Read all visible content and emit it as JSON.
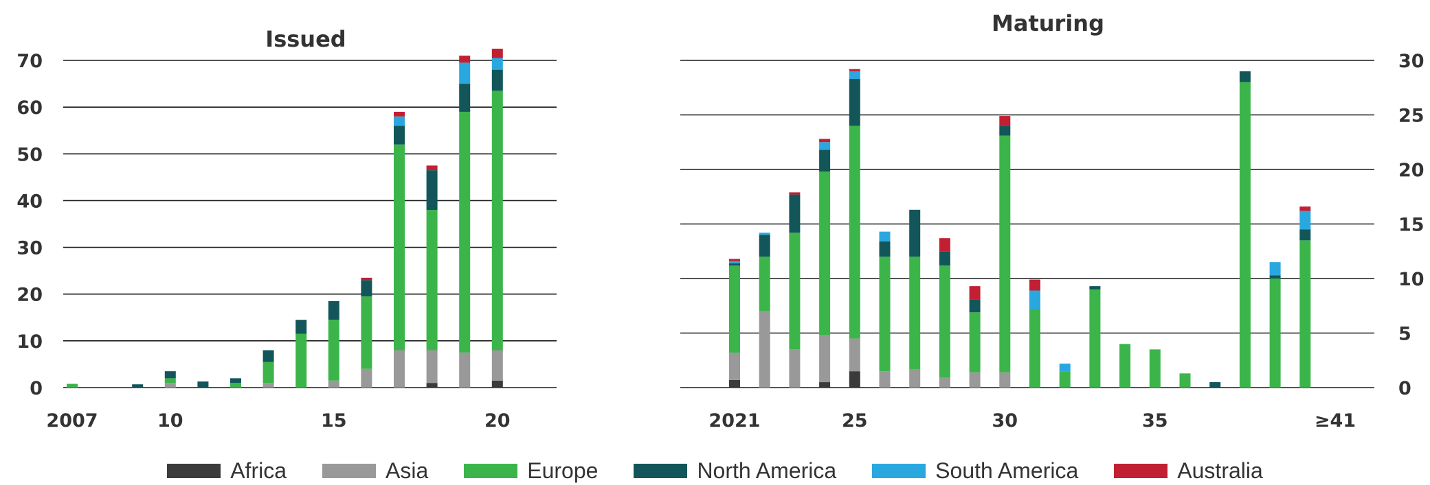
{
  "colors": {
    "Africa": "#3b3b3b",
    "Asia": "#999999",
    "Europe": "#3bb54a",
    "North America": "#12565a",
    "South America": "#29a8e0",
    "Australia": "#c21f32"
  },
  "legend": [
    "Africa",
    "Asia",
    "Europe",
    "North America",
    "South America",
    "Australia"
  ],
  "chart_data": [
    {
      "type": "bar",
      "stacked": true,
      "title": "Issued",
      "x": [
        2007,
        2008,
        2009,
        2010,
        2011,
        2012,
        2013,
        2014,
        2015,
        2016,
        2017,
        2018,
        2019,
        2020
      ],
      "x_tick_labels": [
        "2007",
        "10",
        "15",
        "20"
      ],
      "y_tick_labels": [
        "0",
        "10",
        "20",
        "30",
        "40",
        "50",
        "60",
        "70"
      ],
      "ylim": [
        0,
        70
      ],
      "grid": true,
      "y_axis_side": "left",
      "series": [
        {
          "name": "Africa",
          "values": [
            0,
            0,
            0,
            0,
            0,
            0,
            0,
            0,
            0,
            0,
            0,
            1,
            0,
            1.5
          ]
        },
        {
          "name": "Asia",
          "values": [
            0,
            0,
            0,
            1,
            0,
            0,
            1,
            0,
            1.5,
            4,
            8,
            7,
            7.5,
            6.5
          ]
        },
        {
          "name": "Europe",
          "values": [
            0.8,
            0,
            0,
            1,
            0,
            1,
            4.5,
            11.5,
            13,
            15.5,
            44,
            30,
            51.5,
            55.5
          ]
        },
        {
          "name": "North America",
          "values": [
            0,
            0,
            0.7,
            1.5,
            1.3,
            1,
            2.5,
            3,
            4,
            3.5,
            4,
            8.5,
            6,
            4.5
          ]
        },
        {
          "name": "South America",
          "values": [
            0,
            0,
            0,
            0,
            0,
            0,
            0,
            0,
            0,
            0,
            2,
            0,
            4.5,
            2.5
          ]
        },
        {
          "name": "Australia",
          "values": [
            0,
            0,
            0,
            0,
            0,
            0,
            0,
            0,
            0,
            0.5,
            1,
            1,
            1.5,
            2
          ]
        }
      ]
    },
    {
      "type": "bar",
      "stacked": true,
      "title": "Maturing",
      "x": [
        "2021",
        "2022",
        "2023",
        "2024",
        "2025",
        "2026",
        "2027",
        "2028",
        "2029",
        "2030",
        "2031",
        "2032",
        "2033",
        "2034",
        "2035",
        "2036",
        "2037",
        "2038",
        "2039",
        "2040",
        "≥41"
      ],
      "x_tick_labels": [
        "2021",
        "25",
        "30",
        "35",
        "≥41"
      ],
      "y_tick_labels": [
        "0",
        "5",
        "10",
        "15",
        "20",
        "25",
        "30"
      ],
      "ylim": [
        0,
        30
      ],
      "grid": true,
      "y_axis_side": "right",
      "series": [
        {
          "name": "Africa",
          "values": [
            0.7,
            0,
            0,
            0.5,
            1.5,
            0,
            0,
            0,
            0,
            0,
            0,
            0,
            0,
            0,
            0,
            0,
            0,
            0,
            0,
            0,
            0
          ]
        },
        {
          "name": "Asia",
          "values": [
            2.5,
            7,
            3.5,
            4.3,
            3,
            1.5,
            1.7,
            0.9,
            1.4,
            1.4,
            0,
            0,
            0,
            0,
            0,
            0,
            0,
            0,
            0,
            0,
            0
          ]
        },
        {
          "name": "Europe",
          "values": [
            8,
            5,
            10.7,
            15,
            19.5,
            10.5,
            10.3,
            10.3,
            5.5,
            21.7,
            7.2,
            1.5,
            9,
            4,
            3.5,
            1.3,
            0,
            28,
            10,
            13.5,
            0
          ]
        },
        {
          "name": "North America",
          "values": [
            0.2,
            2,
            3.5,
            2,
            4.3,
            1.4,
            4.3,
            1.3,
            1.2,
            0.9,
            0,
            0,
            0.3,
            0,
            0,
            0,
            0.5,
            1,
            0.3,
            1,
            0
          ]
        },
        {
          "name": "South America",
          "values": [
            0.2,
            0.2,
            0,
            0.7,
            0.7,
            0.9,
            0,
            0,
            0,
            0,
            1.7,
            0.7,
            0,
            0,
            0,
            0,
            0,
            0,
            1.2,
            1.7,
            0
          ]
        },
        {
          "name": "Australia",
          "values": [
            0.2,
            0,
            0.2,
            0.3,
            0.2,
            0,
            0,
            1.2,
            1.2,
            0.9,
            1,
            0,
            0,
            0,
            0,
            0,
            0,
            0,
            0,
            0.4,
            0
          ]
        }
      ]
    }
  ]
}
